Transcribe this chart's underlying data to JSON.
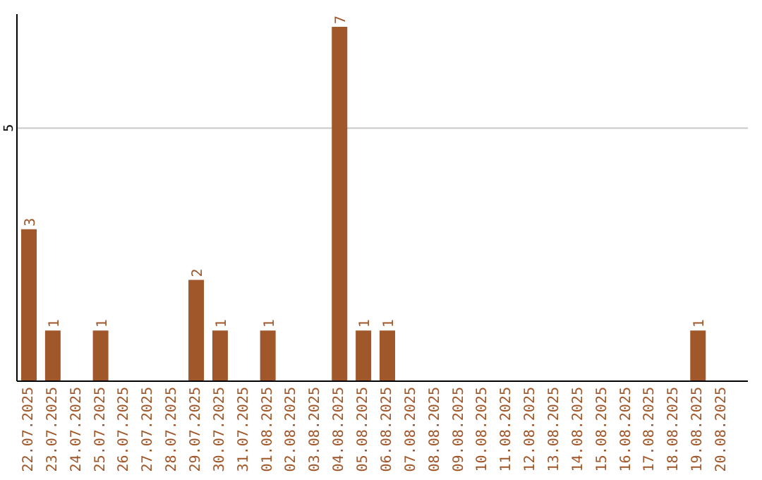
{
  "chart_data": {
    "type": "bar",
    "categories": [
      "22.07.2025",
      "23.07.2025",
      "24.07.2025",
      "25.07.2025",
      "26.07.2025",
      "27.07.2025",
      "28.07.2025",
      "29.07.2025",
      "30.07.2025",
      "31.07.2025",
      "01.08.2025",
      "02.08.2025",
      "03.08.2025",
      "04.08.2025",
      "05.08.2025",
      "06.08.2025",
      "07.08.2025",
      "08.08.2025",
      "09.08.2025",
      "10.08.2025",
      "11.08.2025",
      "12.08.2025",
      "13.08.2025",
      "14.08.2025",
      "15.08.2025",
      "16.08.2025",
      "17.08.2025",
      "18.08.2025",
      "19.08.2025",
      "20.08.2025"
    ],
    "values": [
      3,
      1,
      0,
      1,
      0,
      0,
      0,
      2,
      1,
      0,
      1,
      0,
      0,
      7,
      1,
      1,
      0,
      0,
      0,
      0,
      0,
      0,
      0,
      0,
      0,
      0,
      0,
      0,
      1,
      0
    ],
    "value_labels": [
      "3",
      "1",
      null,
      "1",
      null,
      null,
      null,
      "2",
      "1",
      null,
      "1",
      null,
      null,
      "7",
      "1",
      "1",
      null,
      null,
      null,
      null,
      null,
      null,
      null,
      null,
      null,
      null,
      null,
      null,
      "1",
      null
    ],
    "color": "#a0572a",
    "ylim": [
      0,
      7.25
    ],
    "yticks": [
      5
    ],
    "grid": "y"
  }
}
